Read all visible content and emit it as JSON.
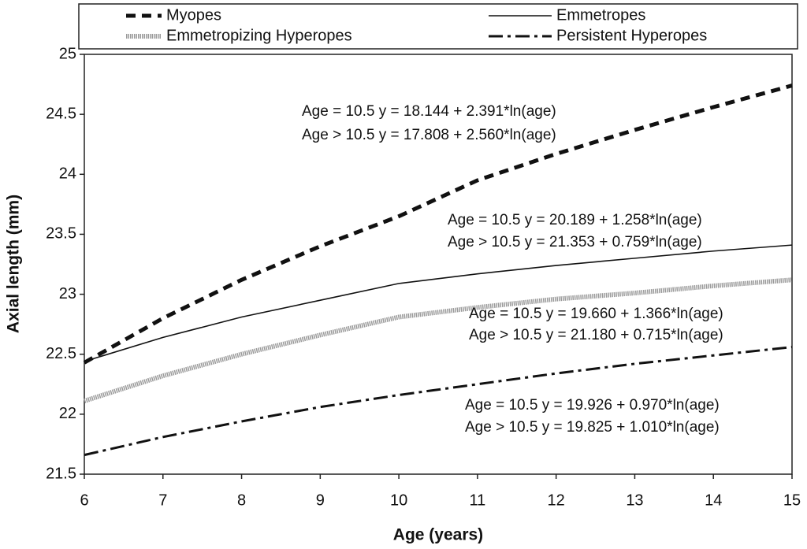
{
  "chart_data": {
    "type": "line",
    "x_label": "Age (years)",
    "y_label": "Axial length (mm)",
    "x": [
      6,
      7,
      8,
      9,
      10,
      11,
      12,
      13,
      14,
      15
    ],
    "xlim": [
      6,
      15
    ],
    "xticks": [
      6,
      7,
      8,
      9,
      10,
      11,
      12,
      13,
      14,
      15
    ],
    "ylim": [
      21.5,
      25
    ],
    "yticks": [
      21.5,
      22,
      22.5,
      23,
      23.5,
      24,
      24.5,
      25
    ],
    "series": [
      {
        "name": "Myopes",
        "color": "#111111",
        "line_style": "dashed",
        "values": [
          22.43,
          22.8,
          23.12,
          23.4,
          23.65,
          23.95,
          24.17,
          24.37,
          24.56,
          24.74
        ]
      },
      {
        "name": "Emmetropes",
        "color": "#111111",
        "line_style": "solid",
        "values": [
          22.44,
          22.64,
          22.81,
          22.95,
          23.09,
          23.17,
          23.24,
          23.3,
          23.36,
          23.41
        ]
      },
      {
        "name": "Emmetropizing Hyperopes",
        "color": "#9a9a9a",
        "line_style": "dotted",
        "values": [
          22.11,
          22.32,
          22.5,
          22.66,
          22.81,
          22.89,
          22.96,
          23.01,
          23.07,
          23.12
        ]
      },
      {
        "name": "Persistent Hyperopes",
        "color": "#111111",
        "line_style": "dash-dot",
        "values": [
          21.66,
          21.81,
          21.94,
          22.06,
          22.16,
          22.25,
          22.34,
          22.42,
          22.49,
          22.56
        ]
      }
    ],
    "annotations": [
      "Age =  10.5 y = 18.144 + 2.391*ln(age)",
      "Age > 10.5 y = 17.808 + 2.560*ln(age)",
      "Age =  10.5 y = 20.189 + 1.258*ln(age)",
      "Age > 10.5 y = 21.353 + 0.759*ln(age)",
      "Age =  10.5 y = 19.660 + 1.366*ln(age)",
      "Age > 10.5 y = 21.180 + 0.715*ln(age)",
      "Age =  10.5 y = 19.926 + 0.970*ln(age)",
      "Age > 10.5 y = 19.825 + 1.010*ln(age)"
    ]
  }
}
